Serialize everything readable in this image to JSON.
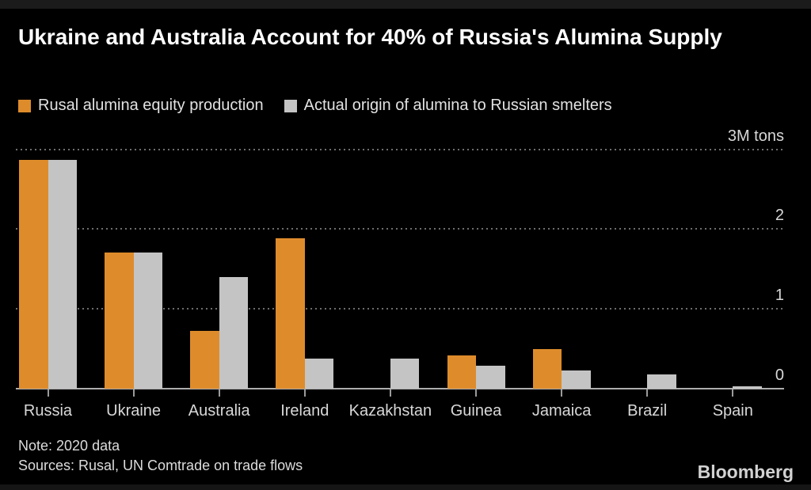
{
  "title": "Ukraine and Australia Account for 40% of Russia's Alumina Supply",
  "legend": [
    {
      "label": "Rusal alumina equity production",
      "color": "#de8c2b"
    },
    {
      "label": "Actual origin of alumina to Russian smelters",
      "color": "#c4c4c4"
    }
  ],
  "footer": {
    "note": "Note: 2020 data",
    "sources": "Sources: Rusal, UN Comtrade on trade flows",
    "brand": "Bloomberg"
  },
  "colors": {
    "background": "#000000",
    "orange_series": "#de8c2b",
    "gray_series": "#c4c4c4",
    "gridline": "#6e6e6e",
    "axis_line": "#adadad",
    "text": "#d8d8d8"
  },
  "chart_data": {
    "type": "bar",
    "title": "Ukraine and Australia Account for 40% of Russia's Alumina Supply",
    "categories": [
      "Russia",
      "Ukraine",
      "Australia",
      "Ireland",
      "Kazakhstan",
      "Guinea",
      "Jamaica",
      "Brazil",
      "Spain"
    ],
    "series": [
      {
        "name": "Rusal alumina equity production",
        "color": "#de8c2b",
        "values": [
          2.87,
          1.71,
          0.72,
          1.88,
          0,
          0.42,
          0.5,
          0,
          0
        ]
      },
      {
        "name": "Actual origin of alumina to Russian smelters",
        "color": "#c4c4c4",
        "values": [
          2.87,
          1.71,
          1.4,
          0.38,
          0.38,
          0.29,
          0.23,
          0.18,
          0.03
        ]
      }
    ],
    "ylabel": "3M tons",
    "unit": "M tons",
    "ylim": [
      0,
      3
    ],
    "yticks": [
      3,
      2,
      1,
      0
    ],
    "ytick_labels": {
      "3": "3M tons",
      "2": "2",
      "1": "1",
      "0": "0"
    },
    "grid": "horizontal dotted, solid zero baseline",
    "legend_position": "top"
  }
}
